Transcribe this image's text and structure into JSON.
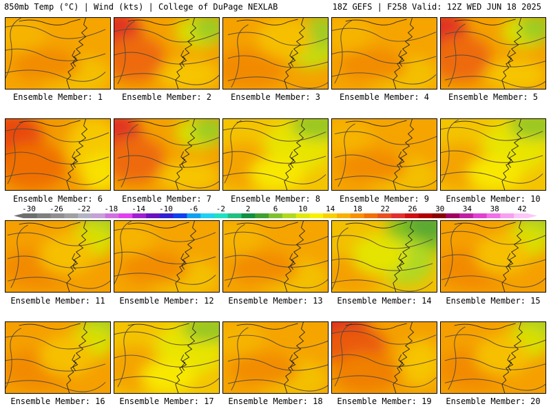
{
  "header": {
    "left": "850mb Temp (°C) | Wind (kts) | College of DuPage NEXLAB",
    "right": "18Z GEFS | F258 Valid: 12Z WED JUN 18 2025"
  },
  "members": [
    {
      "label": "Ensemble Member: 1",
      "pattern": "warm"
    },
    {
      "label": "Ensemble Member: 2",
      "pattern": "hot-west-cool-ne"
    },
    {
      "label": "Ensemble Member: 3",
      "pattern": "cool-ne"
    },
    {
      "label": "Ensemble Member: 4",
      "pattern": "warm"
    },
    {
      "label": "Ensemble Member: 5",
      "pattern": "hot-west-cool-ne"
    },
    {
      "label": "Ensemble Member: 6",
      "pattern": "hot-west"
    },
    {
      "label": "Ensemble Member: 7",
      "pattern": "hot-west-cool-ne"
    },
    {
      "label": "Ensemble Member: 8",
      "pattern": "cool"
    },
    {
      "label": "Ensemble Member: 9",
      "pattern": "warm"
    },
    {
      "label": "Ensemble Member: 10",
      "pattern": "cool"
    },
    {
      "label": "Ensemble Member: 11",
      "pattern": "warm-cool-ne"
    },
    {
      "label": "Ensemble Member: 12",
      "pattern": "warm"
    },
    {
      "label": "Ensemble Member: 13",
      "pattern": "warm"
    },
    {
      "label": "Ensemble Member: 14",
      "pattern": "cool-ne-strong"
    },
    {
      "label": "Ensemble Member: 15",
      "pattern": "warm-cool-ne"
    },
    {
      "label": "Ensemble Member: 16",
      "pattern": "warm-cool-ne"
    },
    {
      "label": "Ensemble Member: 17",
      "pattern": "cool"
    },
    {
      "label": "Ensemble Member: 18",
      "pattern": "warm"
    },
    {
      "label": "Ensemble Member: 19",
      "pattern": "hot-nw"
    },
    {
      "label": "Ensemble Member: 20",
      "pattern": "warm-cool-ne"
    }
  ],
  "colorbar": {
    "labels": [
      "-30",
      "-26",
      "-22",
      "-18",
      "-14",
      "-10",
      "-6",
      "-2",
      "2",
      "6",
      "10",
      "14",
      "18",
      "22",
      "26",
      "30",
      "34",
      "38",
      "42"
    ],
    "colors": [
      "#6e6e6e",
      "#7f7f7f",
      "#8f8f8f",
      "#a0a0a0",
      "#b3b3c6",
      "#c6a0d8",
      "#d070e0",
      "#e040f0",
      "#a020d0",
      "#6a10c0",
      "#3020d0",
      "#1040f0",
      "#10a0f0",
      "#20d0f0",
      "#20e0c0",
      "#20c080",
      "#109040",
      "#40a030",
      "#80c030",
      "#b0d820",
      "#e0e810",
      "#f8f000",
      "#f8d000",
      "#f8b000",
      "#f89000",
      "#f07000",
      "#e85020",
      "#e03030",
      "#d01010",
      "#b00000",
      "#8a0000",
      "#a00060",
      "#c020a0",
      "#e040d0",
      "#f070e8",
      "#f8a0f0",
      "#fcc8f8"
    ]
  }
}
